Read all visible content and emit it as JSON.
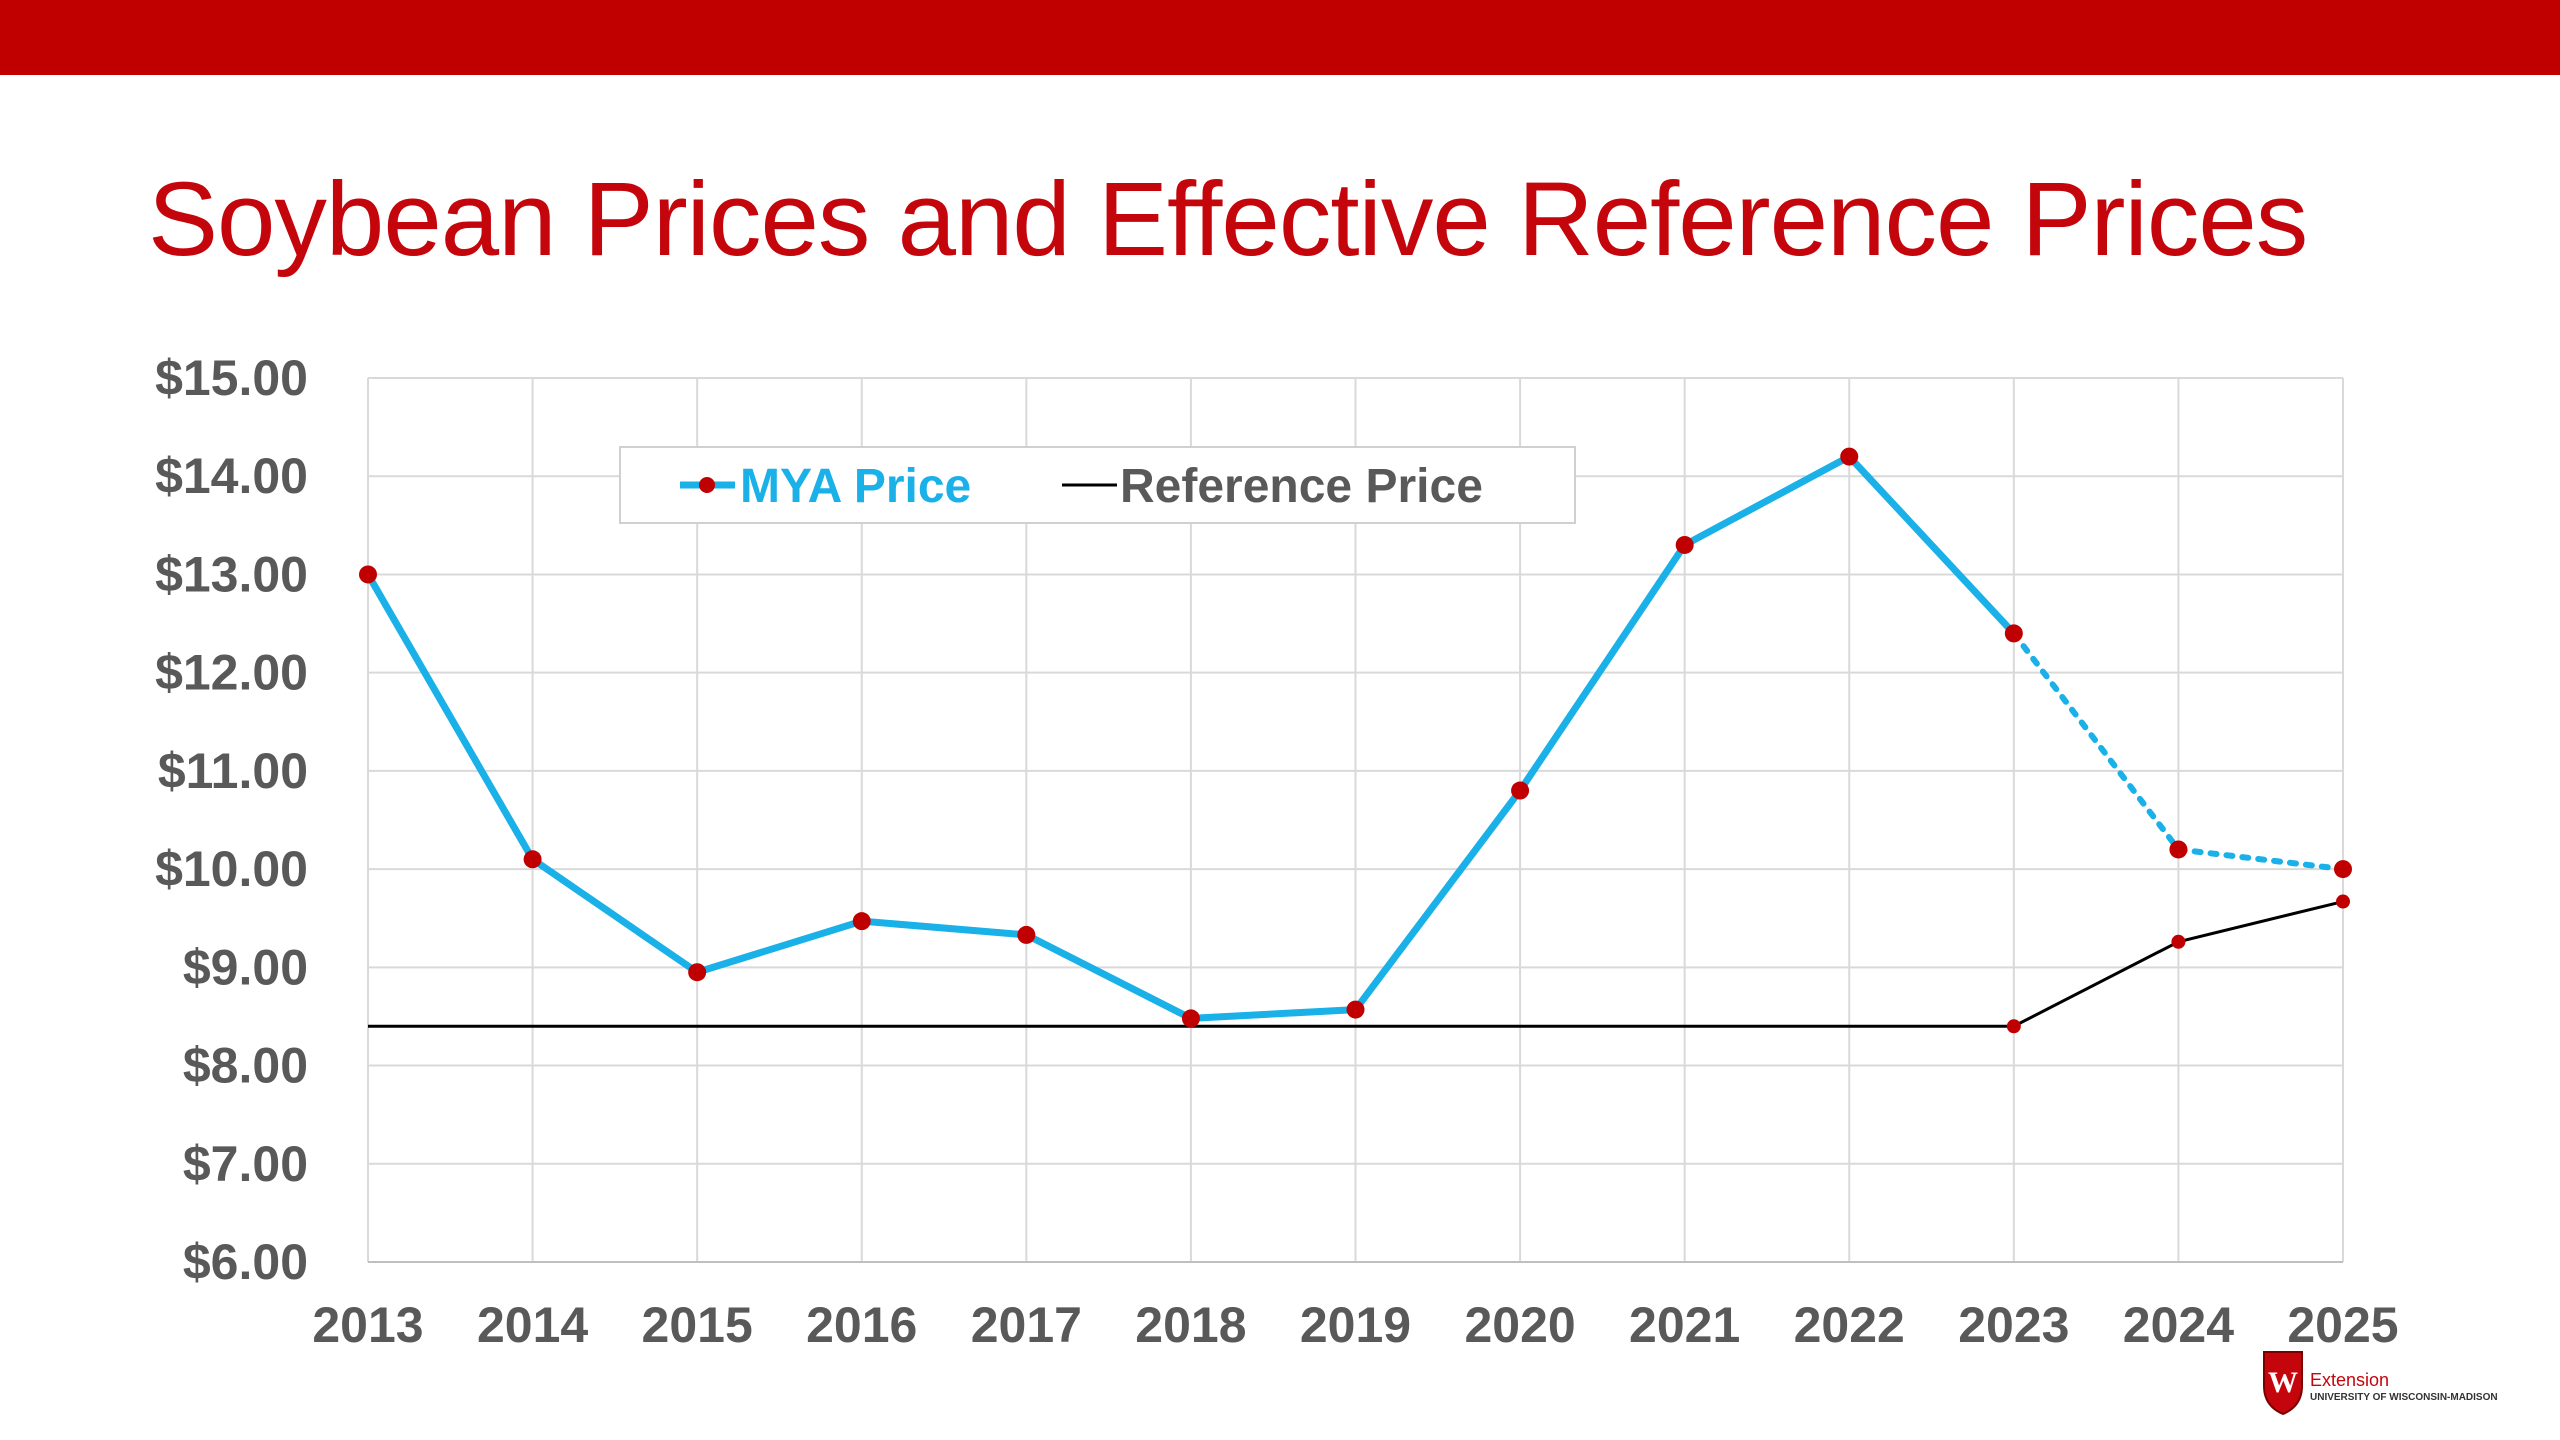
{
  "slide": {
    "title": "Soybean Prices and Effective Reference Prices"
  },
  "colors": {
    "band": "#c00000",
    "title": "#c5050c",
    "mya_line": "#1ab0e8",
    "mya_marker": "#c00000",
    "reference_line": "#000000",
    "grid": "#d9d9d9",
    "axis_text": "#595959"
  },
  "logo": {
    "name": "Extension",
    "org": "UNIVERSITY OF WISCONSIN-MADISON",
    "crest_letter": "W"
  },
  "chart_data": {
    "type": "line",
    "title": "Soybean Prices and Effective Reference Prices",
    "xlabel": "",
    "ylabel": "",
    "categories": [
      "2013",
      "2014",
      "2015",
      "2016",
      "2017",
      "2018",
      "2019",
      "2020",
      "2021",
      "2022",
      "2023",
      "2024",
      "2025"
    ],
    "ylim": [
      6,
      15
    ],
    "yticks": [
      6,
      7,
      8,
      9,
      10,
      11,
      12,
      13,
      14,
      15
    ],
    "ytick_labels": [
      "$6.00",
      "$7.00",
      "$8.00",
      "$9.00",
      "$10.00",
      "$11.00",
      "$12.00",
      "$13.00",
      "$14.00",
      "$15.00"
    ],
    "grid": true,
    "legend_position": "top-left",
    "series": [
      {
        "name": "MYA Price",
        "values": [
          13.0,
          10.1,
          8.95,
          9.47,
          9.33,
          8.48,
          8.57,
          10.8,
          13.3,
          14.2,
          12.4,
          10.2,
          10.0
        ],
        "projected_from_index": 10,
        "markers": true
      },
      {
        "name": "Reference Price",
        "values": [
          8.4,
          8.4,
          8.4,
          8.4,
          8.4,
          8.4,
          8.4,
          8.4,
          8.4,
          8.4,
          8.4,
          9.26,
          9.67
        ],
        "marker_indices": [
          10,
          11,
          12
        ]
      }
    ]
  }
}
